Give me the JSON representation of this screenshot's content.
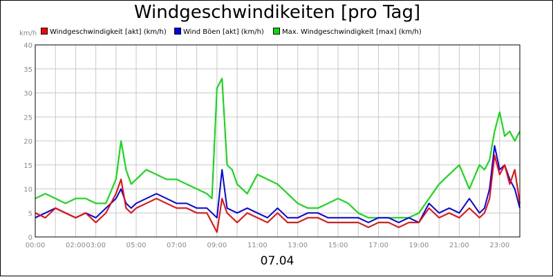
{
  "chart_data": {
    "type": "line",
    "title": "Windgeschwindikeiten [pro Tag]",
    "y_unit": "km/h",
    "date_label": "07.04",
    "ylim": [
      0,
      40
    ],
    "y_ticks": [
      0,
      5,
      10,
      15,
      20,
      25,
      30,
      35,
      40
    ],
    "xlim": [
      0,
      1440
    ],
    "x_ticks": [
      {
        "t": 0,
        "label": "00:00"
      },
      {
        "t": 120,
        "label": "02:00"
      },
      {
        "t": 180,
        "label": "03:00"
      },
      {
        "t": 300,
        "label": "05:00"
      },
      {
        "t": 420,
        "label": "07:00"
      },
      {
        "t": 540,
        "label": "09:00"
      },
      {
        "t": 660,
        "label": "11:00"
      },
      {
        "t": 780,
        "label": "13:00"
      },
      {
        "t": 900,
        "label": "15:00"
      },
      {
        "t": 1020,
        "label": "17:00"
      },
      {
        "t": 1140,
        "label": "19:00"
      },
      {
        "t": 1260,
        "label": "21:00"
      },
      {
        "t": 1380,
        "label": "23:00"
      }
    ],
    "x_unit_minutes": true,
    "grid": true,
    "legend_position": "top",
    "series": [
      {
        "name": "Windgeschwindigkeit [akt] (km/h)",
        "color": "#ff0000",
        "x": [
          0,
          30,
          60,
          90,
          120,
          150,
          180,
          210,
          240,
          255,
          270,
          285,
          300,
          330,
          360,
          390,
          420,
          450,
          480,
          510,
          540,
          555,
          570,
          600,
          630,
          660,
          690,
          720,
          750,
          780,
          810,
          840,
          870,
          900,
          930,
          960,
          990,
          1020,
          1050,
          1080,
          1110,
          1140,
          1170,
          1200,
          1230,
          1260,
          1290,
          1320,
          1335,
          1350,
          1365,
          1380,
          1395,
          1410,
          1425,
          1440
        ],
        "values": [
          5,
          4,
          6,
          5,
          4,
          5,
          3,
          5,
          9,
          12,
          6,
          5,
          6,
          7,
          8,
          7,
          6,
          6,
          5,
          5,
          1,
          8,
          5,
          3,
          5,
          4,
          3,
          5,
          3,
          3,
          4,
          4,
          3,
          3,
          3,
          3,
          2,
          3,
          3,
          2,
          3,
          3,
          6,
          4,
          5,
          4,
          6,
          4,
          5,
          8,
          17,
          13,
          15,
          11,
          14,
          7
        ]
      },
      {
        "name": "Wind Böen [akt] (km/h)",
        "color": "#0000ff",
        "x": [
          0,
          30,
          60,
          90,
          120,
          150,
          180,
          210,
          240,
          255,
          270,
          285,
          300,
          330,
          360,
          390,
          420,
          450,
          480,
          510,
          540,
          555,
          570,
          600,
          630,
          660,
          690,
          720,
          750,
          780,
          810,
          840,
          870,
          900,
          930,
          960,
          990,
          1020,
          1050,
          1080,
          1110,
          1140,
          1170,
          1200,
          1230,
          1260,
          1290,
          1320,
          1335,
          1350,
          1365,
          1380,
          1395,
          1410,
          1425,
          1440
        ],
        "values": [
          4,
          5,
          6,
          5,
          4,
          5,
          4,
          6,
          8,
          10,
          7,
          6,
          7,
          8,
          9,
          8,
          7,
          7,
          6,
          6,
          4,
          14,
          6,
          5,
          6,
          5,
          4,
          6,
          4,
          4,
          5,
          5,
          4,
          4,
          4,
          4,
          3,
          4,
          4,
          3,
          4,
          3,
          7,
          5,
          6,
          5,
          8,
          5,
          6,
          10,
          19,
          14,
          15,
          12,
          10,
          6
        ]
      },
      {
        "name": "Max. Windgeschwindigkeit [max] (km/h)",
        "color": "#00e000",
        "x": [
          0,
          30,
          60,
          90,
          120,
          150,
          180,
          210,
          240,
          255,
          270,
          285,
          300,
          330,
          360,
          390,
          420,
          450,
          480,
          510,
          525,
          540,
          555,
          570,
          585,
          600,
          630,
          660,
          690,
          720,
          750,
          780,
          810,
          840,
          870,
          900,
          930,
          960,
          990,
          1020,
          1050,
          1080,
          1110,
          1140,
          1170,
          1200,
          1230,
          1260,
          1290,
          1320,
          1335,
          1350,
          1365,
          1380,
          1395,
          1410,
          1425,
          1440
        ],
        "values": [
          8,
          9,
          8,
          7,
          8,
          8,
          7,
          7,
          12,
          20,
          14,
          11,
          12,
          14,
          13,
          12,
          12,
          11,
          10,
          9,
          8,
          31,
          33,
          15,
          14,
          11,
          9,
          13,
          12,
          11,
          9,
          7,
          6,
          6,
          7,
          8,
          7,
          5,
          4,
          4,
          4,
          4,
          4,
          5,
          8,
          11,
          13,
          15,
          10,
          15,
          14,
          16,
          22,
          26,
          21,
          22,
          20,
          22
        ]
      }
    ]
  }
}
